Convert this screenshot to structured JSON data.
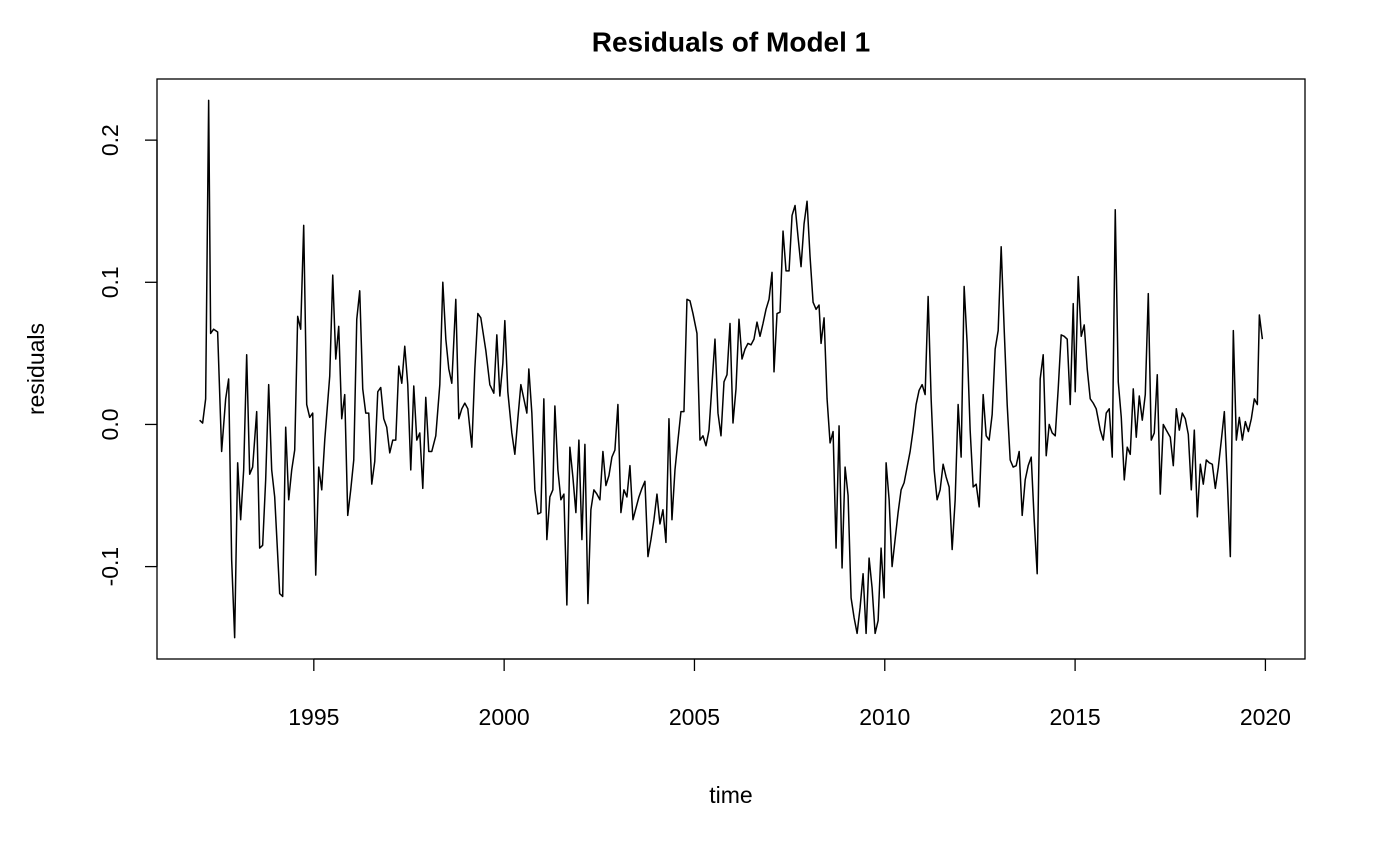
{
  "chart_data": {
    "type": "line",
    "title": "Residuals of Model 1",
    "xlabel": "time",
    "ylabel": "residuals",
    "color": "#000000",
    "x": [
      1992.0,
      1992.079,
      1992.158,
      1992.237,
      1992.289,
      1992.368,
      1992.473,
      1992.578,
      1992.684,
      1992.762,
      1992.841,
      1992.92,
      1992.999,
      1993.078,
      1993.157,
      1993.236,
      1993.315,
      1993.393,
      1993.499,
      1993.577,
      1993.656,
      1993.735,
      1993.814,
      1993.893,
      1993.972,
      1994.103,
      1994.182,
      1994.261,
      1994.34,
      1994.419,
      1994.498,
      1994.576,
      1994.655,
      1994.734,
      1994.813,
      1994.892,
      1994.971,
      1995.05,
      1995.129,
      1995.208,
      1995.287,
      1995.418,
      1995.497,
      1995.576,
      1995.654,
      1995.733,
      1995.812,
      1995.891,
      1995.97,
      1996.049,
      1996.128,
      1996.206,
      1996.285,
      1996.364,
      1996.443,
      1996.522,
      1996.601,
      1996.68,
      1996.758,
      1996.837,
      1996.916,
      1996.995,
      1997.074,
      1997.153,
      1997.232,
      1997.311,
      1997.389,
      1997.468,
      1997.547,
      1997.626,
      1997.705,
      1997.784,
      1997.863,
      1997.941,
      1998.02,
      1998.099,
      1998.204,
      1998.31,
      1998.389,
      1998.468,
      1998.546,
      1998.625,
      1998.73,
      1998.809,
      1998.888,
      1998.967,
      1999.046,
      1999.151,
      1999.23,
      1999.309,
      1999.387,
      1999.519,
      1999.624,
      1999.729,
      1999.808,
      1999.887,
      1999.966,
      2000.018,
      2000.097,
      2000.202,
      2000.281,
      2000.36,
      2000.439,
      2000.518,
      2000.597,
      2000.649,
      2000.728,
      2000.807,
      2000.886,
      2000.964,
      2001.043,
      2001.122,
      2001.201,
      2001.28,
      2001.333,
      2001.412,
      2001.491,
      2001.57,
      2001.648,
      2001.727,
      2001.806,
      2001.885,
      2001.964,
      2002.043,
      2002.122,
      2002.201,
      2002.279,
      2002.358,
      2002.437,
      2002.516,
      2002.595,
      2002.674,
      2002.753,
      2002.831,
      2002.91,
      2002.989,
      2003.068,
      2003.147,
      2003.226,
      2003.305,
      2003.384,
      2003.462,
      2003.541,
      2003.62,
      2003.699,
      2003.778,
      2003.857,
      2003.936,
      2004.015,
      2004.093,
      2004.172,
      2004.251,
      2004.33,
      2004.409,
      2004.488,
      2004.567,
      2004.645,
      2004.724,
      2004.803,
      2004.882,
      2004.961,
      2005.066,
      2005.145,
      2005.224,
      2005.303,
      2005.382,
      2005.46,
      2005.539,
      2005.618,
      2005.697,
      2005.776,
      2005.855,
      2005.934,
      2006.012,
      2006.091,
      2006.17,
      2006.249,
      2006.328,
      2006.407,
      2006.486,
      2006.564,
      2006.643,
      2006.722,
      2006.801,
      2006.88,
      2006.959,
      2007.038,
      2007.09,
      2007.169,
      2007.248,
      2007.327,
      2007.406,
      2007.485,
      2007.564,
      2007.643,
      2007.721,
      2007.8,
      2007.879,
      2007.958,
      2008.037,
      2008.116,
      2008.195,
      2008.273,
      2008.326,
      2008.405,
      2008.484,
      2008.563,
      2008.642,
      2008.72,
      2008.799,
      2008.878,
      2008.957,
      2009.036,
      2009.115,
      2009.194,
      2009.273,
      2009.351,
      2009.43,
      2009.509,
      2009.588,
      2009.667,
      2009.746,
      2009.825,
      2009.903,
      2009.982,
      2010.035,
      2010.114,
      2010.192,
      2010.271,
      2010.35,
      2010.429,
      2010.508,
      2010.587,
      2010.666,
      2010.744,
      2010.823,
      2010.902,
      2010.981,
      2011.06,
      2011.139,
      2011.218,
      2011.297,
      2011.375,
      2011.454,
      2011.533,
      2011.612,
      2011.691,
      2011.77,
      2011.849,
      2011.927,
      2012.006,
      2012.085,
      2012.164,
      2012.243,
      2012.322,
      2012.401,
      2012.48,
      2012.585,
      2012.664,
      2012.742,
      2012.821,
      2012.9,
      2012.979,
      2013.058,
      2013.137,
      2013.216,
      2013.295,
      2013.373,
      2013.452,
      2013.531,
      2013.61,
      2013.689,
      2013.768,
      2013.847,
      2013.925,
      2014.004,
      2014.083,
      2014.162,
      2014.241,
      2014.32,
      2014.399,
      2014.478,
      2014.556,
      2014.635,
      2014.714,
      2014.793,
      2014.872,
      2014.951,
      2015.003,
      2015.082,
      2015.161,
      2015.24,
      2015.319,
      2015.398,
      2015.477,
      2015.555,
      2015.661,
      2015.74,
      2015.818,
      2015.897,
      2015.976,
      2016.055,
      2016.134,
      2016.213,
      2016.292,
      2016.37,
      2016.449,
      2016.528,
      2016.607,
      2016.686,
      2016.765,
      2016.844,
      2016.923,
      2017.001,
      2017.08,
      2017.159,
      2017.238,
      2017.317,
      2017.396,
      2017.501,
      2017.58,
      2017.659,
      2017.738,
      2017.816,
      2017.895,
      2017.974,
      2018.053,
      2018.132,
      2018.211,
      2018.29,
      2018.368,
      2018.447,
      2018.526,
      2018.605,
      2018.684,
      2018.763,
      2018.842,
      2018.921,
      2018.999,
      2019.078,
      2019.157,
      2019.236,
      2019.315,
      2019.394,
      2019.473,
      2019.552,
      2019.63,
      2019.709,
      2019.788,
      2019.841,
      2019.92
    ],
    "values": [
      0.003,
      0.001,
      0.018,
      0.228,
      0.064,
      0.067,
      0.065,
      -0.019,
      0.018,
      0.032,
      -0.095,
      -0.15,
      -0.027,
      -0.067,
      -0.032,
      0.049,
      -0.035,
      -0.03,
      0.009,
      -0.087,
      -0.085,
      -0.039,
      0.028,
      -0.032,
      -0.051,
      -0.119,
      -0.121,
      -0.002,
      -0.053,
      -0.032,
      -0.018,
      0.076,
      0.067,
      0.14,
      0.014,
      0.005,
      0.008,
      -0.106,
      -0.03,
      -0.046,
      -0.011,
      0.034,
      0.105,
      0.046,
      0.069,
      0.004,
      0.021,
      -0.064,
      -0.046,
      -0.025,
      0.074,
      0.094,
      0.025,
      0.008,
      0.008,
      -0.042,
      -0.026,
      0.023,
      0.026,
      0.004,
      -0.002,
      -0.02,
      -0.011,
      -0.011,
      0.041,
      0.029,
      0.055,
      0.028,
      -0.032,
      0.027,
      -0.011,
      -0.006,
      -0.045,
      0.019,
      -0.019,
      -0.019,
      -0.008,
      0.028,
      0.1,
      0.06,
      0.039,
      0.029,
      0.088,
      0.004,
      0.011,
      0.015,
      0.011,
      -0.016,
      0.039,
      0.078,
      0.075,
      0.052,
      0.028,
      0.022,
      0.063,
      0.02,
      0.043,
      0.073,
      0.023,
      -0.006,
      -0.021,
      0.004,
      0.028,
      0.018,
      0.008,
      0.039,
      0.008,
      -0.046,
      -0.063,
      -0.062,
      0.018,
      -0.081,
      -0.051,
      -0.046,
      0.013,
      -0.032,
      -0.053,
      -0.049,
      -0.127,
      -0.016,
      -0.037,
      -0.062,
      -0.011,
      -0.081,
      -0.014,
      -0.126,
      -0.06,
      -0.046,
      -0.049,
      -0.053,
      -0.019,
      -0.043,
      -0.036,
      -0.023,
      -0.018,
      0.014,
      -0.062,
      -0.046,
      -0.051,
      -0.029,
      -0.067,
      -0.059,
      -0.051,
      -0.045,
      -0.04,
      -0.093,
      -0.081,
      -0.067,
      -0.049,
      -0.07,
      -0.06,
      -0.083,
      0.004,
      -0.067,
      -0.032,
      -0.011,
      0.009,
      0.009,
      0.088,
      0.087,
      0.078,
      0.064,
      -0.011,
      -0.008,
      -0.015,
      -0.004,
      0.028,
      0.06,
      0.008,
      -0.008,
      0.03,
      0.035,
      0.071,
      0.001,
      0.025,
      0.074,
      0.046,
      0.053,
      0.057,
      0.056,
      0.06,
      0.072,
      0.062,
      0.071,
      0.081,
      0.088,
      0.107,
      0.037,
      0.078,
      0.079,
      0.136,
      0.108,
      0.108,
      0.147,
      0.154,
      0.132,
      0.111,
      0.141,
      0.157,
      0.118,
      0.086,
      0.081,
      0.084,
      0.057,
      0.075,
      0.018,
      -0.013,
      -0.005,
      -0.087,
      -0.001,
      -0.101,
      -0.03,
      -0.05,
      -0.122,
      -0.136,
      -0.147,
      -0.129,
      -0.105,
      -0.147,
      -0.094,
      -0.115,
      -0.147,
      -0.138,
      -0.087,
      -0.122,
      -0.027,
      -0.053,
      -0.1,
      -0.081,
      -0.062,
      -0.046,
      -0.041,
      -0.03,
      -0.019,
      -0.004,
      0.014,
      0.024,
      0.028,
      0.021,
      0.09,
      0.018,
      -0.032,
      -0.053,
      -0.046,
      -0.028,
      -0.037,
      -0.044,
      -0.088,
      -0.053,
      0.014,
      -0.023,
      0.097,
      0.057,
      -0.004,
      -0.044,
      -0.042,
      -0.058,
      0.021,
      -0.008,
      -0.011,
      0.007,
      0.053,
      0.066,
      0.125,
      0.067,
      0.014,
      -0.025,
      -0.03,
      -0.029,
      -0.019,
      -0.064,
      -0.039,
      -0.029,
      -0.023,
      -0.067,
      -0.105,
      0.032,
      0.049,
      -0.022,
      0.0,
      -0.006,
      -0.008,
      0.025,
      0.063,
      0.062,
      0.06,
      0.014,
      0.085,
      0.023,
      0.104,
      0.062,
      0.07,
      0.039,
      0.018,
      0.015,
      0.011,
      -0.004,
      -0.011,
      0.008,
      0.011,
      -0.023,
      0.151,
      0.03,
      0.005,
      -0.039,
      -0.016,
      -0.021,
      0.025,
      -0.009,
      0.02,
      0.003,
      0.021,
      0.092,
      -0.011,
      -0.006,
      0.035,
      -0.049,
      0.0,
      -0.004,
      -0.009,
      -0.029,
      0.011,
      -0.004,
      0.008,
      0.004,
      -0.007,
      -0.046,
      -0.004,
      -0.065,
      -0.028,
      -0.042,
      -0.025,
      -0.027,
      -0.028,
      -0.045,
      -0.03,
      -0.011,
      0.009,
      -0.039,
      -0.093,
      0.066,
      -0.011,
      0.005,
      -0.011,
      0.002,
      -0.005,
      0.004,
      0.018,
      0.014,
      0.077,
      0.06
    ],
    "xlim": [
      1990.88,
      2021.04
    ],
    "ylim": [
      -0.165,
      0.243
    ],
    "xticks": [
      1995,
      2000,
      2005,
      2010,
      2015,
      2020
    ],
    "yticks": [
      -0.1,
      {
        "value": 0,
        "label": "0.0"
      },
      0.1,
      0.2
    ]
  }
}
